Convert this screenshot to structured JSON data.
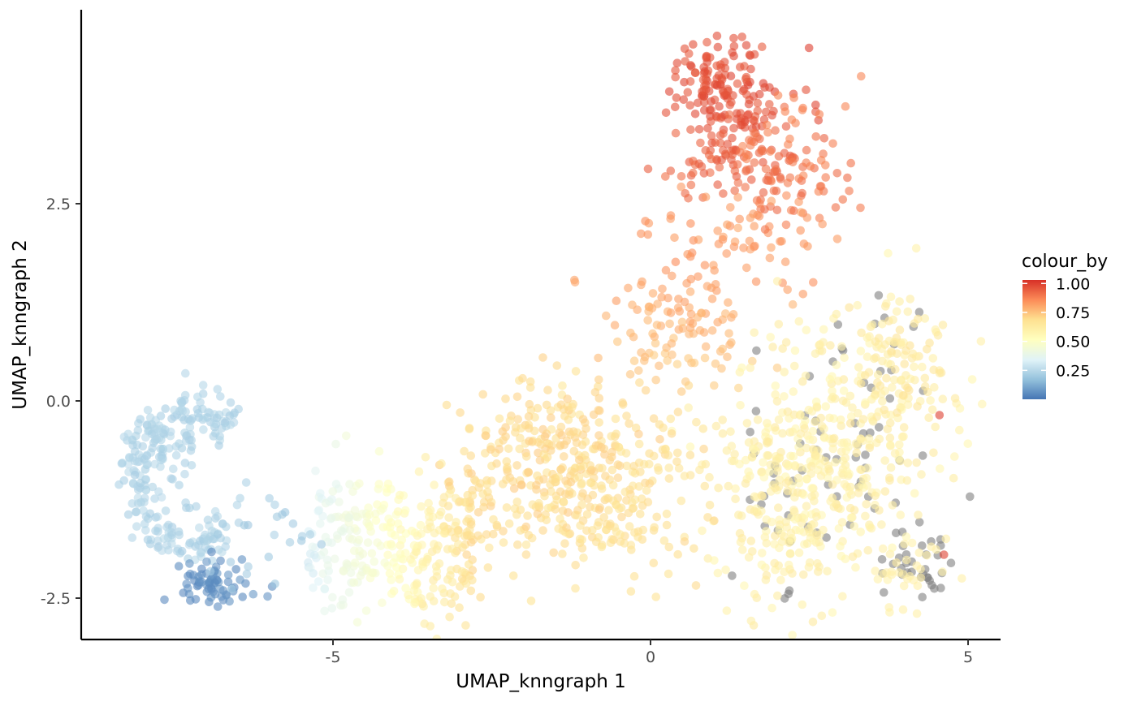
{
  "chart_data": {
    "type": "scatter",
    "title": "",
    "xlabel": "UMAP_knngraph 1",
    "ylabel": "UMAP_knngraph 2",
    "xlim": [
      -9.0,
      5.5
    ],
    "ylim": [
      -3.0,
      4.95
    ],
    "x_ticks": [
      -5,
      0,
      5
    ],
    "x_tick_labels": [
      "-5",
      "0",
      "5"
    ],
    "y_ticks": [
      -2.5,
      0.0,
      2.5
    ],
    "y_tick_labels": [
      "-2.5",
      "0.0",
      "2.5"
    ],
    "grid": false,
    "legend": {
      "title": "colour_by",
      "placement": "right",
      "type": "colorbar",
      "range": [
        0.0,
        1.03
      ],
      "breaks": [
        0.25,
        0.5,
        0.75,
        1.0
      ],
      "break_labels": [
        "0.25",
        "0.50",
        "0.75",
        "1.00"
      ]
    },
    "colormap": {
      "name": "RdYlBu (reversed)",
      "stops": [
        "#4575b4",
        "#91bfdb",
        "#e0f3f8",
        "#ffffbf",
        "#fee090",
        "#fc8d59",
        "#d73027"
      ],
      "na_color": "#808080"
    },
    "point_opacity": 0.6,
    "point_count_approx": 2100,
    "clusters": [
      {
        "desc": "upper-right dense group",
        "x_range": [
          0.0,
          3.2
        ],
        "y_range": [
          1.9,
          4.6
        ],
        "value_range": [
          0.85,
          1.0
        ],
        "approx_points": 360
      },
      {
        "desc": "right large group",
        "x_range": [
          1.3,
          4.9
        ],
        "y_range": [
          -2.6,
          1.4
        ],
        "value_range": [
          0.55,
          0.72
        ],
        "approx_points": 620,
        "na_fraction": 0.14
      },
      {
        "desc": "bridge to right group",
        "x_range": [
          -0.6,
          1.6
        ],
        "y_range": [
          0.2,
          1.7
        ],
        "value_range": [
          0.66,
          0.8
        ]
      },
      {
        "desc": "central band",
        "x_range": [
          -2.6,
          1.0
        ],
        "y_range": [
          -2.3,
          0.0
        ],
        "value_range": [
          0.65,
          0.74
        ],
        "approx_points": 430
      },
      {
        "desc": "gradient transition",
        "x_range": [
          -5.4,
          -2.6
        ],
        "y_range": [
          -2.7,
          -0.7
        ],
        "value_range": [
          0.32,
          0.7
        ],
        "approx_points": 300
      },
      {
        "desc": "left loop",
        "x_range": [
          -8.3,
          -6.0
        ],
        "y_range": [
          -1.9,
          0.0
        ],
        "value_range": [
          0.2,
          0.28
        ],
        "approx_points": 200
      },
      {
        "desc": "left dark tail",
        "x_range": [
          -7.4,
          -6.1
        ],
        "y_range": [
          -2.6,
          -1.9
        ],
        "value_range": [
          0.0,
          0.08
        ],
        "approx_points": 70
      }
    ],
    "highlighted_points": [
      {
        "x": 4.55,
        "y": -0.18,
        "value": 1.0
      },
      {
        "x": 4.62,
        "y": -1.95,
        "value": 1.0
      }
    ]
  }
}
